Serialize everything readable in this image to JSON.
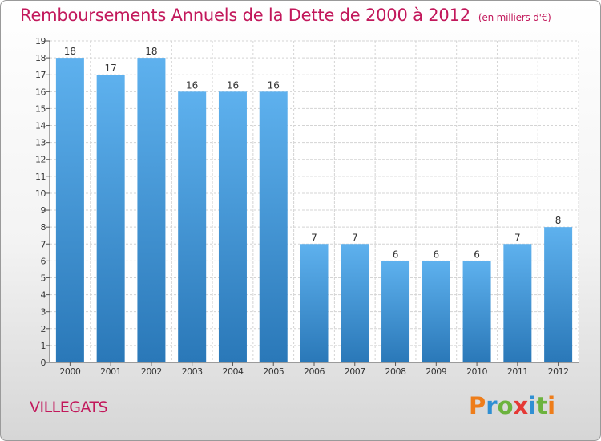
{
  "title": "Remboursements Annuels de la Dette de 2000 à 2012",
  "unit_note": "(en milliers d'€)",
  "commune": "VILLEGATS",
  "logo": {
    "text": "Proxiti",
    "letters": [
      "P",
      "r",
      "o",
      "x",
      "i",
      "t",
      "i"
    ],
    "colors": [
      "#ee7d1a",
      "#2f8fd3",
      "#6cb33e",
      "#e53935",
      "#2f8fd3",
      "#6cb33e",
      "#ee7d1a"
    ]
  },
  "colors": {
    "bar_top": "#5eb1ee",
    "bar_bottom": "#2a78b8",
    "title": "#c2185b"
  },
  "chart_data": {
    "type": "bar",
    "title": "Remboursements Annuels de la Dette de 2000 à 2012",
    "subtitle": "(en milliers d'€)",
    "categories": [
      "2000",
      "2001",
      "2002",
      "2003",
      "2004",
      "2005",
      "2006",
      "2007",
      "2008",
      "2009",
      "2010",
      "2011",
      "2012"
    ],
    "values": [
      18,
      17,
      18,
      16,
      16,
      16,
      7,
      7,
      6,
      6,
      6,
      7,
      8
    ],
    "ylim": [
      0,
      19
    ],
    "yticks": [
      0,
      1,
      2,
      3,
      4,
      5,
      6,
      7,
      8,
      9,
      10,
      11,
      12,
      13,
      14,
      15,
      16,
      17,
      18,
      19
    ],
    "grid": true,
    "legend": "none"
  }
}
